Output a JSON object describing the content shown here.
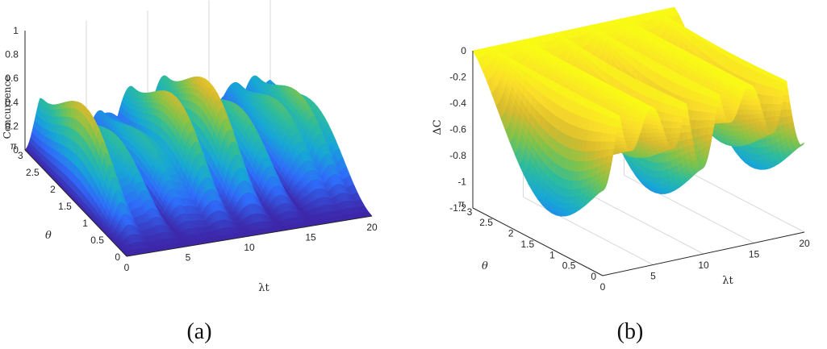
{
  "chart_data": [
    {
      "type": "surface",
      "panel_label": "(a)",
      "xlabel": "λt",
      "ylabel": "θ",
      "zlabel": "Concurrence",
      "xlim": [
        0,
        20
      ],
      "ylim": [
        0,
        3.14159
      ],
      "zlim": [
        0,
        1
      ],
      "x_ticks": [
        "0",
        "5",
        "10",
        "15",
        "20"
      ],
      "y_ticks": [
        "0",
        "0.5",
        "1",
        "1.5",
        "2",
        "2.5",
        "3",
        "π"
      ],
      "z_ticks": [
        "0",
        "0.2",
        "0.4",
        "0.6",
        "0.8",
        "1"
      ],
      "grid": true,
      "colormap": [
        "#3e26a8",
        "#2f6cfa",
        "#17a7d6",
        "#2ebc9c",
        "#7fc34b",
        "#d8ba2e",
        "#fadc2a",
        "#f9fb15"
      ]
    },
    {
      "type": "surface",
      "panel_label": "(b)",
      "xlabel": "λt",
      "ylabel": "θ",
      "zlabel": "ΔC",
      "xlim": [
        0,
        20
      ],
      "ylim": [
        0,
        3.14159
      ],
      "zlim": [
        -1.2,
        0
      ],
      "x_ticks": [
        "0",
        "5",
        "10",
        "15",
        "20"
      ],
      "y_ticks": [
        "0",
        "0.5",
        "1",
        "1.5",
        "2",
        "2.5",
        "3",
        "π"
      ],
      "z_ticks": [
        "0",
        "-0.2",
        "-0.4",
        "-0.6",
        "-0.8",
        "-1",
        "-1.2"
      ],
      "grid": true,
      "colormap": [
        "#3e26a8",
        "#2f6cfa",
        "#17a7d6",
        "#2ebc9c",
        "#7fc34b",
        "#d8ba2e",
        "#fadc2a",
        "#f9fb15"
      ]
    }
  ]
}
